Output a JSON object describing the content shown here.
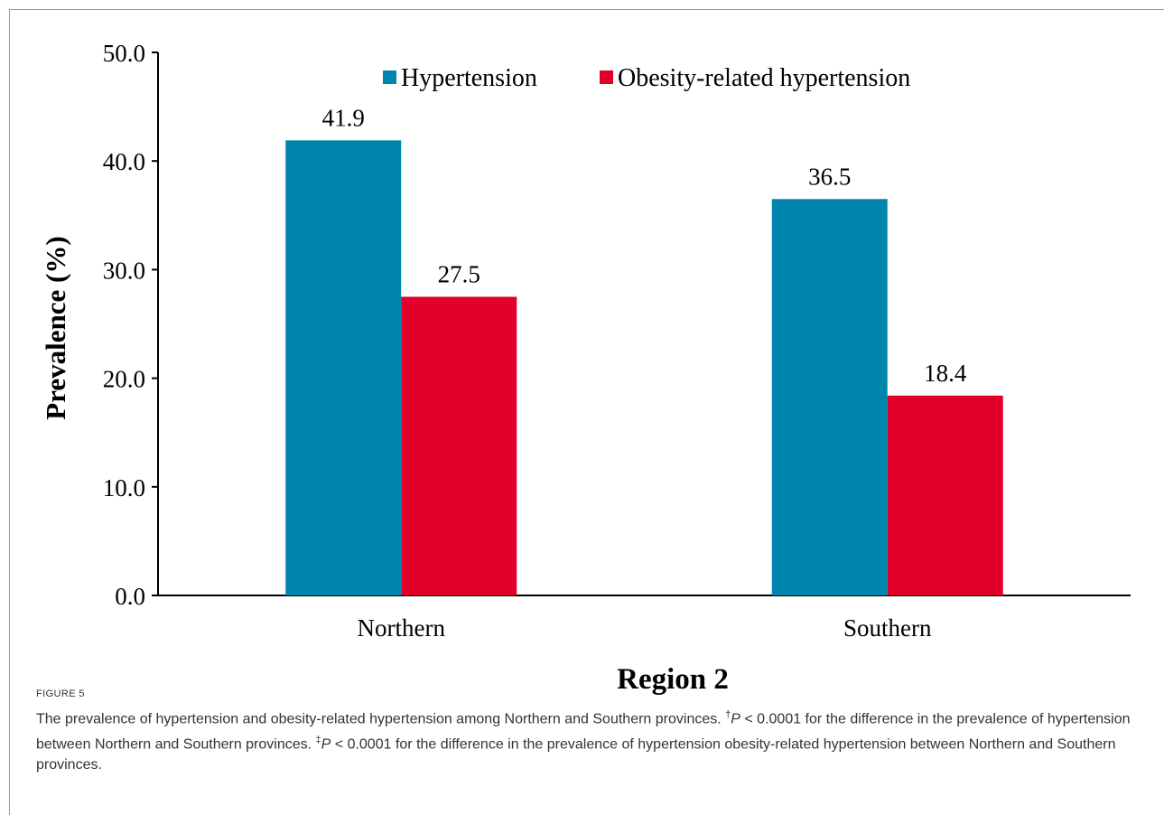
{
  "figure": {
    "label": "FIGURE 5",
    "caption": [
      {
        "text": "The prevalence of hypertension and obesity-related hypertension among Northern and Southern provinces. "
      },
      {
        "text": "†",
        "sup": true
      },
      {
        "text": "P",
        "italic": true
      },
      {
        "text": " < 0.0001 for the difference in the prevalence of hypertension between Northern and Southern provinces. "
      },
      {
        "text": "‡",
        "sup": true
      },
      {
        "text": "P",
        "italic": true
      },
      {
        "text": " < 0.0001 for the difference in the prevalence of hypertension obesity-related hypertension between Northern and Southern provinces."
      }
    ]
  },
  "chart_data": {
    "type": "bar",
    "categories": [
      "Northern",
      "Southern"
    ],
    "series": [
      {
        "name": "Hypertension",
        "values": [
          41.9,
          36.5
        ],
        "labels": [
          "41.9",
          "36.5"
        ],
        "color": "#0086ad"
      },
      {
        "name": "Obesity-related hypertension",
        "values": [
          27.5,
          18.4
        ],
        "labels": [
          "27.5",
          "18.4"
        ],
        "color": "#e1002a"
      }
    ],
    "xlabel": "Region 2",
    "ylabel": "Prevalence (%)",
    "ylim": [
      0,
      50
    ],
    "yticks": [
      0,
      10,
      20,
      30,
      40,
      50
    ],
    "ytick_labels": [
      "0.0",
      "10.0",
      "20.0",
      "30.0",
      "40.0",
      "50.0"
    ],
    "grid": false,
    "legend_position": "top"
  }
}
